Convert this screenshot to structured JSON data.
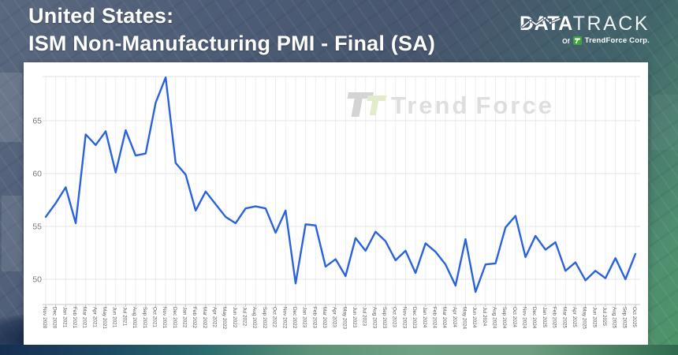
{
  "header": {
    "title_line1": "United States:",
    "title_line2": "ISM Non-Manufacturing PMI - Final (SA)"
  },
  "brand": {
    "word_bold": "DATA",
    "word_light": "TRACK",
    "sub_prefix": "Of",
    "sub_company": "TrendForce Corp."
  },
  "watermark": {
    "text_part1": "Trend",
    "text_part2": "Force"
  },
  "chart_data": {
    "type": "line",
    "title": "United States: ISM Non-Manufacturing PMI - Final (SA)",
    "x_labels": [
      "Nov 2020",
      "Dec 2020",
      "Jan 2021",
      "Feb 2021",
      "Mar 2021",
      "Apr 2021",
      "May 2021",
      "Jun 2021",
      "Jul 2021",
      "Aug 2021",
      "Sep 2021",
      "Oct 2021",
      "Nov 2021",
      "Dec 2021",
      "Jan 2022",
      "Feb 2022",
      "Mar 2022",
      "Apr 2022",
      "May 2022",
      "Jun 2022",
      "Jul 2022",
      "Aug 2022",
      "Sep 2022",
      "Oct 2022",
      "Nov 2022",
      "Dec 2022",
      "Jan 2023",
      "Feb 2023",
      "Mar 2023",
      "Apr 2023",
      "May 2023",
      "Jun 2023",
      "Jul 2023",
      "Aug 2023",
      "Sep 2023",
      "Oct 2023",
      "Nov 2023",
      "Dec 2023",
      "Jan 2024",
      "Feb 2024",
      "Mar 2024",
      "Apr 2024",
      "May 2024",
      "Jun 2024",
      "Jul 2024",
      "Aug 2024",
      "Sep 2024",
      "Oct 2024",
      "Nov 2024",
      "Dec 2024",
      "Jan 2025",
      "Feb 2025",
      "Mar 2025",
      "Apr 2025",
      "May 2025",
      "Jun 2025",
      "Jul 2025",
      "Aug 2025",
      "Sep 2025",
      "Oct 2025"
    ],
    "series": [
      {
        "name": "ISM Non-Manufacturing PMI - Final (SA)",
        "values": [
          55.9,
          57.2,
          58.7,
          55.3,
          63.7,
          62.7,
          64.0,
          60.1,
          64.1,
          61.7,
          61.9,
          66.7,
          69.1,
          61.0,
          59.9,
          56.5,
          58.3,
          57.1,
          55.9,
          55.3,
          56.7,
          56.9,
          56.7,
          54.4,
          56.5,
          49.6,
          55.2,
          55.1,
          51.2,
          51.9,
          50.3,
          53.9,
          52.7,
          54.5,
          53.6,
          51.8,
          52.7,
          50.6,
          53.4,
          52.6,
          51.4,
          49.4,
          53.8,
          48.8,
          51.4,
          51.5,
          54.9,
          56.0,
          52.1,
          54.1,
          52.8,
          53.5,
          50.8,
          51.6,
          49.9,
          50.8,
          50.1,
          52.0,
          50.0,
          52.4
        ]
      }
    ],
    "yticks": [
      50,
      55,
      60,
      65
    ],
    "ylim": [
      47.6,
      69.2
    ],
    "grid": true,
    "legend_position": "none"
  },
  "colors": {
    "line": "#2a63d9",
    "brand_green": "#3fa23c",
    "banner_text": "#ffffff",
    "watermark_gray": "#dedede",
    "watermark_green": "#e2ecca"
  }
}
